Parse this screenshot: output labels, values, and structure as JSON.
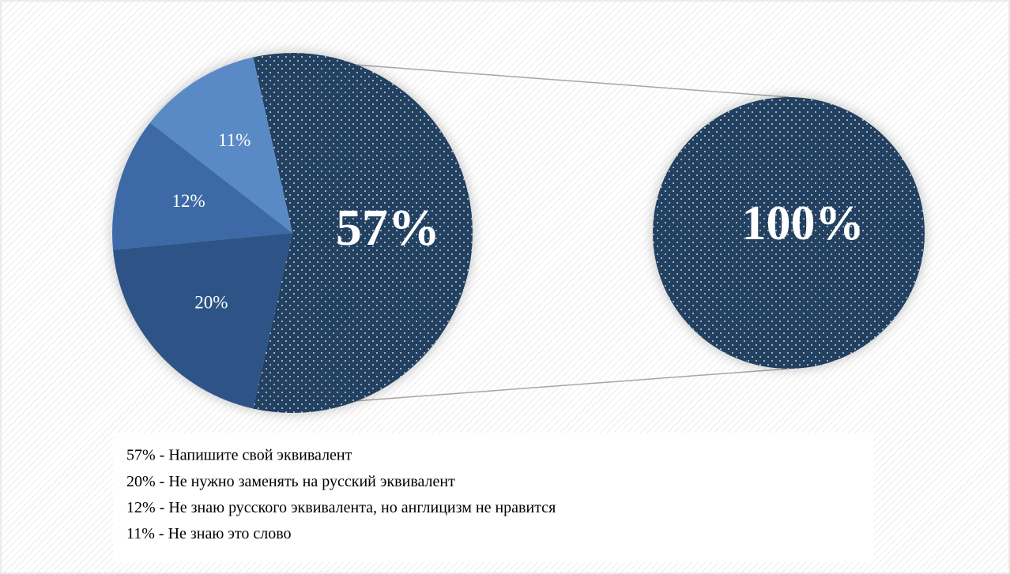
{
  "chart_data": {
    "type": "pie",
    "categories": [
      "57% - Напишите свой эквивалент",
      "20% - Не нужно заменять на русский эквивалент",
      "12% - Не знаю русского эквивалента, но англицизм не нравится",
      "11% - Не знаю это слово"
    ],
    "values": [
      57,
      20,
      12,
      11
    ],
    "value_labels": [
      "57%",
      "20%",
      "12%",
      "11%"
    ],
    "colors": [
      "#243f60",
      "#2e5387",
      "#3e6aa6",
      "#5a8ac6"
    ],
    "breakout": {
      "values": [
        100
      ],
      "value_labels": [
        "100%"
      ],
      "color": "#243f60"
    }
  }
}
